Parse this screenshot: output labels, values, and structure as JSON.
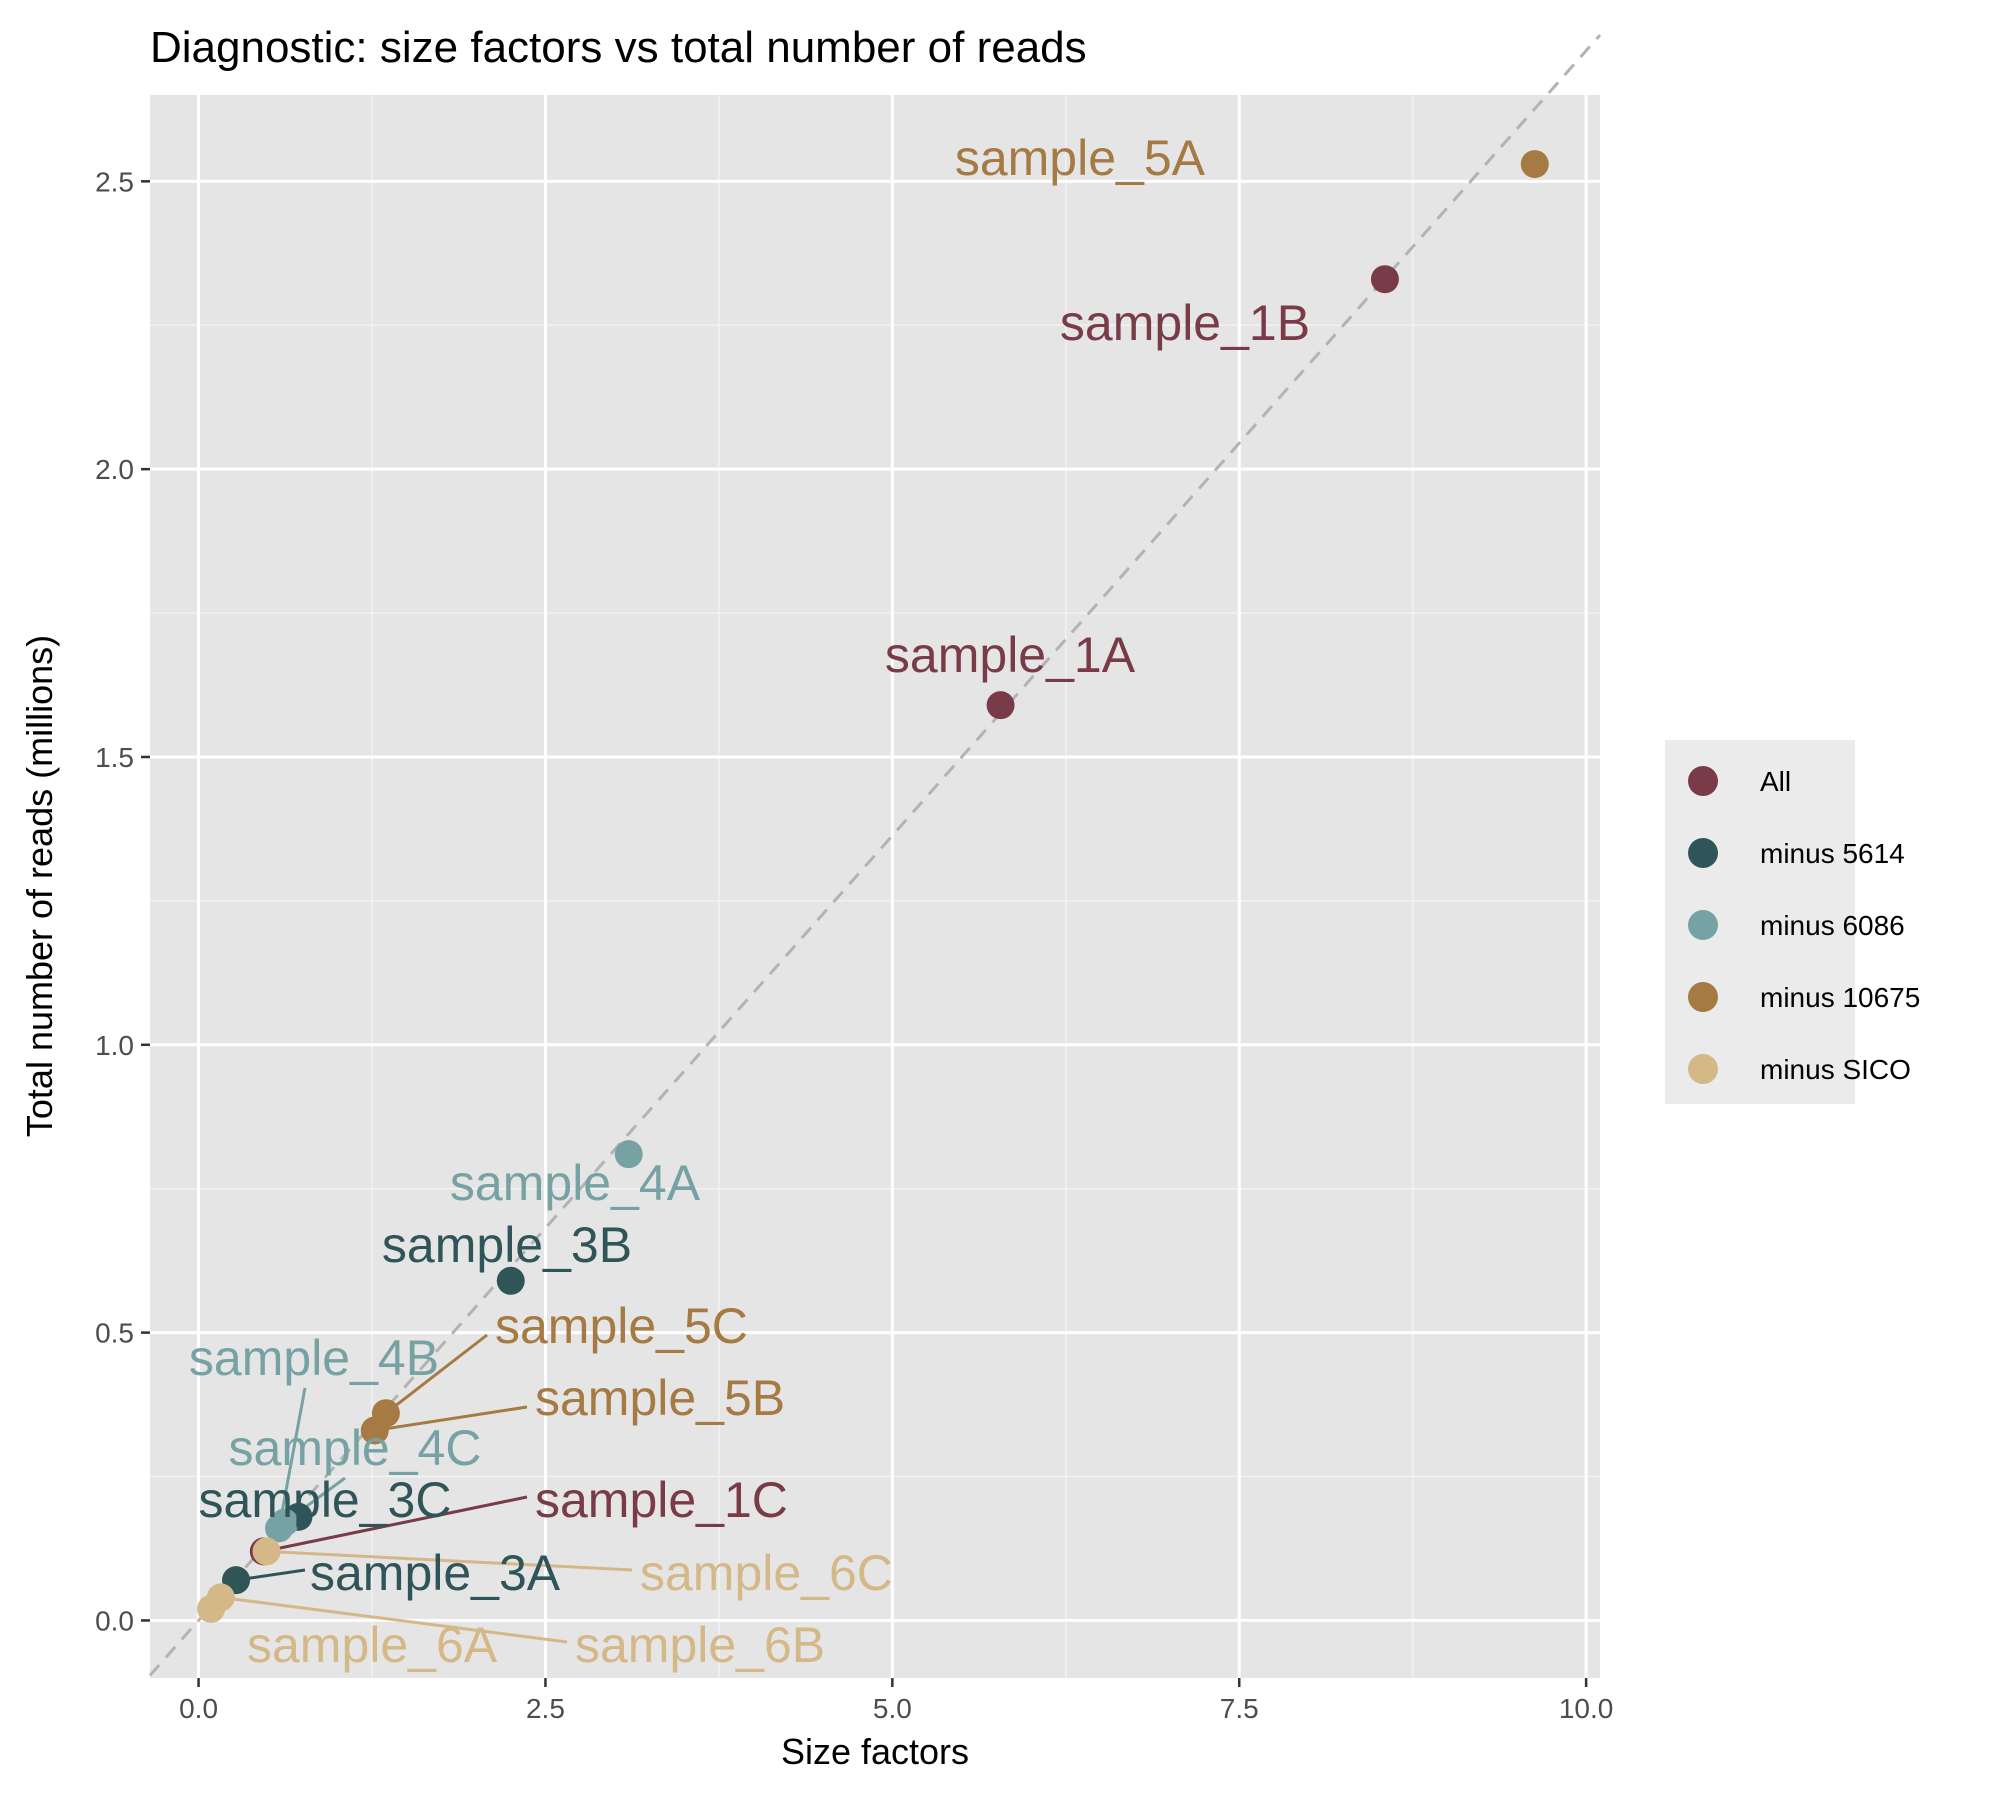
{
  "chart_data": {
    "type": "scatter",
    "title": "Diagnostic: size factors vs total number of reads",
    "xlabel": "Size factors",
    "ylabel": "Total number of reads (millions)",
    "xlim": [
      -0.35,
      10.1
    ],
    "ylim": [
      -0.1,
      2.65
    ],
    "x_ticks": [
      0.0,
      2.5,
      5.0,
      7.5,
      10.0
    ],
    "x_tick_labels": [
      "0.0",
      "2.5",
      "5.0",
      "7.5",
      "10.0"
    ],
    "y_ticks": [
      0.0,
      0.5,
      1.0,
      1.5,
      2.0,
      2.5
    ],
    "y_tick_labels": [
      "0.0",
      "0.5",
      "1.0",
      "1.5",
      "2.0",
      "2.5"
    ],
    "grid": true,
    "reference_line": {
      "type": "identity-like dashed",
      "slope": 0.2727,
      "intercept": 0.0,
      "color": "#b3b3b3"
    },
    "legend": {
      "placement": "right",
      "entries": [
        {
          "name": "All",
          "color": "#7a3b48"
        },
        {
          "name": "minus 5614",
          "color": "#305558"
        },
        {
          "name": "minus 6086",
          "color": "#76a2a4"
        },
        {
          "name": "minus 10675",
          "color": "#a57a43"
        },
        {
          "name": "minus SICO",
          "color": "#d5b888"
        }
      ]
    },
    "points": [
      {
        "label": "sample_5A",
        "series": "minus 10675",
        "x": 9.63,
        "y": 2.53
      },
      {
        "label": "sample_1B",
        "series": "All",
        "x": 8.55,
        "y": 2.33
      },
      {
        "label": "sample_1A",
        "series": "All",
        "x": 5.78,
        "y": 1.59
      },
      {
        "label": "sample_4A",
        "series": "minus 6086",
        "x": 3.1,
        "y": 0.81
      },
      {
        "label": "sample_3B",
        "series": "minus 5614",
        "x": 2.25,
        "y": 0.59
      },
      {
        "label": "sample_5C",
        "series": "minus 10675",
        "x": 1.35,
        "y": 0.36
      },
      {
        "label": "sample_5B",
        "series": "minus 10675",
        "x": 1.27,
        "y": 0.33
      },
      {
        "label": "sample_4B",
        "series": "minus 6086",
        "x": 0.58,
        "y": 0.16
      },
      {
        "label": "sample_4C",
        "series": "minus 6086",
        "x": 0.62,
        "y": 0.17
      },
      {
        "label": "sample_3C",
        "series": "minus 5614",
        "x": 0.72,
        "y": 0.18
      },
      {
        "label": "sample_1C",
        "series": "All",
        "x": 0.47,
        "y": 0.12
      },
      {
        "label": "sample_6C",
        "series": "minus SICO",
        "x": 0.49,
        "y": 0.12
      },
      {
        "label": "sample_3A",
        "series": "minus 5614",
        "x": 0.27,
        "y": 0.07
      },
      {
        "label": "sample_6B",
        "series": "minus SICO",
        "x": 0.16,
        "y": 0.04
      },
      {
        "label": "sample_6A",
        "series": "minus SICO",
        "x": 0.09,
        "y": 0.02
      }
    ]
  }
}
